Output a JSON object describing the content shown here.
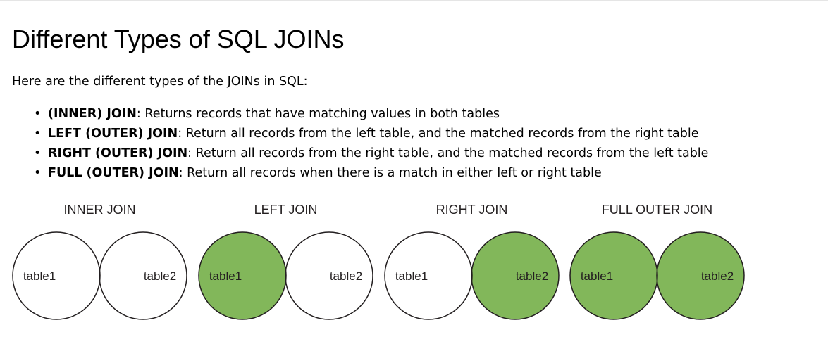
{
  "title": "Different Types of SQL JOINs",
  "intro": "Here are the different types of the JOINs in SQL:",
  "join_types": [
    {
      "term": "(INNER) JOIN",
      "description": ": Returns records that have matching values in both tables"
    },
    {
      "term": "LEFT (OUTER) JOIN",
      "description": ": Return all records from the left table, and the matched records from the right table"
    },
    {
      "term": "RIGHT (OUTER) JOIN",
      "description": ": Return all records from the right table, and the matched records from the left table"
    },
    {
      "term": "FULL (OUTER) JOIN",
      "description": ": Return all records when there is a match in either left or right table"
    }
  ],
  "bullet_glyph": "•",
  "diagrams": [
    {
      "title": "INNER JOIN",
      "left_label": "table1",
      "right_label": "table2",
      "fill": "intersection"
    },
    {
      "title": "LEFT JOIN",
      "left_label": "table1",
      "right_label": "table2",
      "fill": "left"
    },
    {
      "title": "RIGHT JOIN",
      "left_label": "table1",
      "right_label": "table2",
      "fill": "right"
    },
    {
      "title": "FULL OUTER JOIN",
      "left_label": "table1",
      "right_label": "table2",
      "fill": "both"
    }
  ],
  "colors": {
    "fill": "#82b75a",
    "stroke": "#231f20",
    "label_text": "#231f20",
    "title_text": "#231f20"
  }
}
